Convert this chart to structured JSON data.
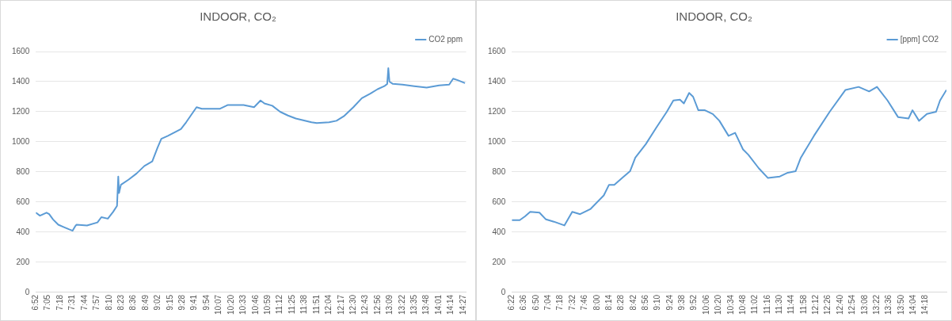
{
  "chart_data": [
    {
      "type": "line",
      "title": "INDOOR, CO₂",
      "ylim": [
        0,
        1600
      ],
      "yticks": [
        0,
        200,
        400,
        600,
        800,
        1000,
        1200,
        1400,
        1600
      ],
      "xlim": [
        6.8667,
        14.5
      ],
      "xticks": [
        {
          "value": 6.8667,
          "label": "6:52"
        },
        {
          "value": 7.0833,
          "label": "7:05"
        },
        {
          "value": 7.3,
          "label": "7:18"
        },
        {
          "value": 7.5167,
          "label": "7:31"
        },
        {
          "value": 7.7333,
          "label": "7:44"
        },
        {
          "value": 7.95,
          "label": "7:57"
        },
        {
          "value": 8.1667,
          "label": "8:10"
        },
        {
          "value": 8.3833,
          "label": "8:23"
        },
        {
          "value": 8.6,
          "label": "8:36"
        },
        {
          "value": 8.8167,
          "label": "8:49"
        },
        {
          "value": 9.0333,
          "label": "9:02"
        },
        {
          "value": 9.25,
          "label": "9:15"
        },
        {
          "value": 9.4667,
          "label": "9:28"
        },
        {
          "value": 9.6833,
          "label": "9:41"
        },
        {
          "value": 9.9,
          "label": "9:54"
        },
        {
          "value": 10.1167,
          "label": "10:07"
        },
        {
          "value": 10.3333,
          "label": "10:20"
        },
        {
          "value": 10.55,
          "label": "10:33"
        },
        {
          "value": 10.7667,
          "label": "10:46"
        },
        {
          "value": 10.9833,
          "label": "10:59"
        },
        {
          "value": 11.2,
          "label": "11:12"
        },
        {
          "value": 11.4167,
          "label": "11:25"
        },
        {
          "value": 11.6333,
          "label": "11:38"
        },
        {
          "value": 11.85,
          "label": "11:51"
        },
        {
          "value": 12.0667,
          "label": "12:04"
        },
        {
          "value": 12.2833,
          "label": "12:17"
        },
        {
          "value": 12.5,
          "label": "12:30"
        },
        {
          "value": 12.7167,
          "label": "12:43"
        },
        {
          "value": 12.9333,
          "label": "12:56"
        },
        {
          "value": 13.15,
          "label": "13:09"
        },
        {
          "value": 13.3667,
          "label": "13:22"
        },
        {
          "value": 13.5833,
          "label": "13:35"
        },
        {
          "value": 13.8,
          "label": "13:48"
        },
        {
          "value": 14.0167,
          "label": "14:01"
        },
        {
          "value": 14.2333,
          "label": "14:14"
        },
        {
          "value": 14.45,
          "label": "14:27"
        }
      ],
      "grid": "y",
      "legend": "top right",
      "marker": "none",
      "line_style": "solid",
      "series": [
        {
          "name": "CO2 ppm",
          "color": "#5b9bd5",
          "x": [
            6.8667,
            6.94,
            7.056,
            7.103,
            7.172,
            7.265,
            7.357,
            7.45,
            7.519,
            7.565,
            7.589,
            7.774,
            7.96,
            8.029,
            8.144,
            8.237,
            8.307,
            8.329,
            8.343,
            8.376,
            8.515,
            8.654,
            8.793,
            8.932,
            9.024,
            9.093,
            9.21,
            9.44,
            9.533,
            9.718,
            9.811,
            10.135,
            10.274,
            10.552,
            10.738,
            10.853,
            10.922,
            11.061,
            11.2,
            11.339,
            11.478,
            11.756,
            11.85,
            12.07,
            12.2,
            12.33,
            12.5,
            12.65,
            12.8,
            12.93,
            13.05,
            13.1,
            13.12,
            13.14,
            13.2,
            13.37,
            13.58,
            13.8,
            14.02,
            14.2,
            14.27,
            14.35,
            14.48
          ],
          "values": [
            530,
            510,
            530,
            520,
            485,
            450,
            435,
            420,
            410,
            440,
            450,
            445,
            465,
            500,
            490,
            535,
            575,
            770,
            660,
            715,
            750,
            790,
            840,
            870,
            960,
            1020,
            1040,
            1085,
            1130,
            1230,
            1220,
            1220,
            1245,
            1245,
            1230,
            1275,
            1255,
            1240,
            1200,
            1175,
            1155,
            1130,
            1125,
            1130,
            1140,
            1170,
            1230,
            1290,
            1320,
            1350,
            1370,
            1385,
            1490,
            1400,
            1385,
            1380,
            1370,
            1360,
            1375,
            1380,
            1420,
            1410,
            1390
          ]
        }
      ]
    },
    {
      "type": "line",
      "title": "INDOOR, CO₂",
      "ylim": [
        0,
        1600
      ],
      "yticks": [
        0,
        200,
        400,
        600,
        800,
        1000,
        1200,
        1400,
        1600
      ],
      "xlim": [
        6.3667,
        14.7
      ],
      "xticks": [
        {
          "value": 6.3667,
          "label": "6:22"
        },
        {
          "value": 6.6,
          "label": "6:36"
        },
        {
          "value": 6.8333,
          "label": "6:50"
        },
        {
          "value": 7.0667,
          "label": "7:04"
        },
        {
          "value": 7.3,
          "label": "7:18"
        },
        {
          "value": 7.5333,
          "label": "7:32"
        },
        {
          "value": 7.7667,
          "label": "7:46"
        },
        {
          "value": 8,
          "label": "8:00"
        },
        {
          "value": 8.2333,
          "label": "8:14"
        },
        {
          "value": 8.4667,
          "label": "8:28"
        },
        {
          "value": 8.7,
          "label": "8:42"
        },
        {
          "value": 8.9333,
          "label": "8:56"
        },
        {
          "value": 9.1667,
          "label": "9:10"
        },
        {
          "value": 9.4,
          "label": "9:24"
        },
        {
          "value": 9.6333,
          "label": "9:38"
        },
        {
          "value": 9.8667,
          "label": "9:52"
        },
        {
          "value": 10.1,
          "label": "10:06"
        },
        {
          "value": 10.3333,
          "label": "10:20"
        },
        {
          "value": 10.5667,
          "label": "10:34"
        },
        {
          "value": 10.8,
          "label": "10:48"
        },
        {
          "value": 11.0333,
          "label": "11:02"
        },
        {
          "value": 11.2667,
          "label": "11:16"
        },
        {
          "value": 11.5,
          "label": "11:30"
        },
        {
          "value": 11.7333,
          "label": "11:44"
        },
        {
          "value": 11.9667,
          "label": "11:58"
        },
        {
          "value": 12.2,
          "label": "12:12"
        },
        {
          "value": 12.4333,
          "label": "12:26"
        },
        {
          "value": 12.6667,
          "label": "12:40"
        },
        {
          "value": 12.9,
          "label": "12:54"
        },
        {
          "value": 13.1333,
          "label": "13:08"
        },
        {
          "value": 13.3667,
          "label": "13:22"
        },
        {
          "value": 13.6,
          "label": "13:36"
        },
        {
          "value": 13.8333,
          "label": "13:50"
        },
        {
          "value": 14.0667,
          "label": "14:04"
        },
        {
          "value": 14.3,
          "label": "14:18"
        }
      ],
      "grid": "y",
      "legend": "top right",
      "marker": "none",
      "line_style": "solid",
      "series": [
        {
          "name": "[ppm] CO2",
          "color": "#5b9bd5",
          "x": [
            6.3667,
            6.518,
            6.619,
            6.719,
            6.896,
            7.021,
            7.172,
            7.374,
            7.525,
            7.676,
            7.878,
            8.13,
            8.23,
            8.331,
            8.482,
            8.633,
            8.734,
            8.935,
            9.137,
            9.338,
            9.464,
            9.59,
            9.665,
            9.766,
            9.842,
            9.943,
            10.069,
            10.22,
            10.346,
            10.522,
            10.648,
            10.799,
            10.9,
            11.101,
            11.278,
            11.505,
            11.656,
            11.807,
            11.908,
            12.159,
            12.461,
            12.764,
            13.016,
            13.217,
            13.368,
            13.57,
            13.771,
            13.973,
            14.048,
            14.174,
            14.325,
            14.501,
            14.577,
            14.7
          ],
          "values": [
            480,
            480,
            505,
            535,
            530,
            485,
            470,
            445,
            535,
            520,
            555,
            645,
            715,
            715,
            760,
            805,
            895,
            985,
            1095,
            1200,
            1275,
            1280,
            1255,
            1325,
            1300,
            1210,
            1210,
            1185,
            1140,
            1040,
            1060,
            950,
            915,
            825,
            760,
            770,
            795,
            805,
            895,
            1040,
            1200,
            1345,
            1365,
            1335,
            1365,
            1275,
            1165,
            1155,
            1210,
            1140,
            1185,
            1200,
            1275,
            1345
          ]
        }
      ]
    }
  ]
}
